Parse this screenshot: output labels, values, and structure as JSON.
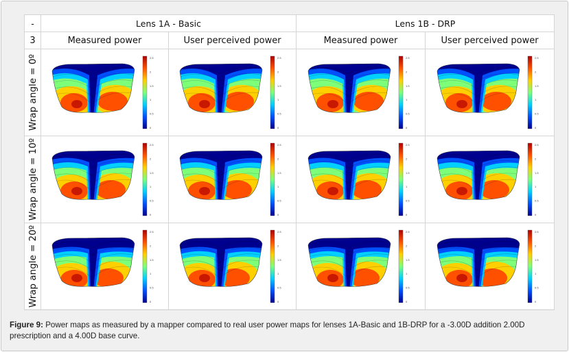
{
  "figure": {
    "corner_top": "-",
    "corner_row2": "3",
    "lens_headers": [
      "Lens 1A - Basic",
      "Lens 1B - DRP"
    ],
    "column_headers": [
      "Measured power",
      "User perceived power",
      "Measured power",
      "User perceived power"
    ],
    "row_labels": [
      "Wrap angle = 0º",
      "Wrap angle = 10º",
      "Wrap angle = 20º"
    ],
    "colorbar_ticks": [
      "2.5",
      "2",
      "1.5",
      "1",
      "0.5",
      "0"
    ],
    "colormap": [
      "#00008f",
      "#0050ff",
      "#00d0ff",
      "#7dff7a",
      "#ffd000",
      "#ff5000",
      "#b00000"
    ]
  },
  "caption": {
    "label": "Figure 9:",
    "text": " Power maps as measured by a mapper compared to real user power maps for lenses 1A-Basic and 1B-DRP for a -3.00D addition 2.00D prescription and a 4.00D base curve."
  }
}
